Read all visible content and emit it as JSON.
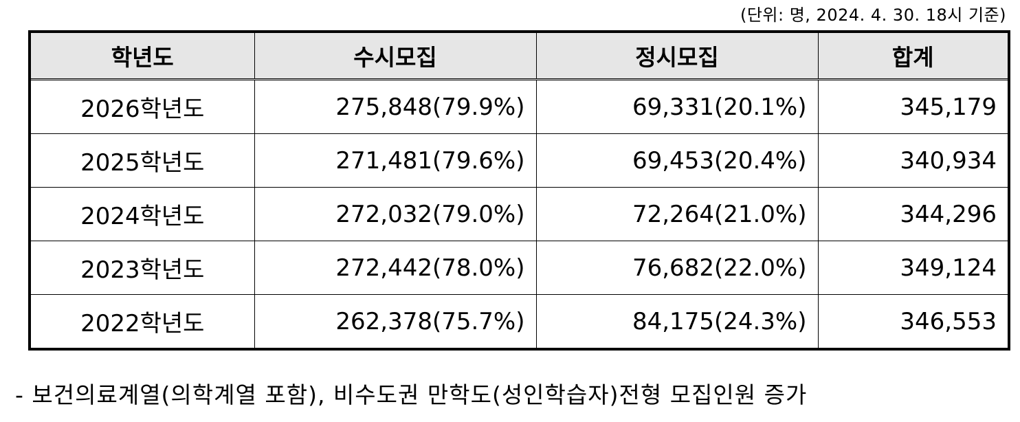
{
  "unit_note": "(단위: 명, 2024. 4. 30. 18시 기준)",
  "table": {
    "headers": [
      "학년도",
      "수시모집",
      "정시모집",
      "합계"
    ],
    "rows": [
      [
        "2026학년도",
        "275,848(79.9%)",
        "69,331(20.1%)",
        "345,179"
      ],
      [
        "2025학년도",
        "271,481(79.6%)",
        "69,453(20.4%)",
        "340,934"
      ],
      [
        "2024학년도",
        "272,032(79.0%)",
        "72,264(21.0%)",
        "344,296"
      ],
      [
        "2023학년도",
        "272,442(78.0%)",
        "76,682(22.0%)",
        "349,124"
      ],
      [
        "2022학년도",
        "262,378(75.7%)",
        "84,175(24.3%)",
        "346,553"
      ]
    ]
  },
  "footnote": "- 보건의료계열(의학계열 포함), 비수도권 만학도(성인학습자)전형 모집인원 증가"
}
